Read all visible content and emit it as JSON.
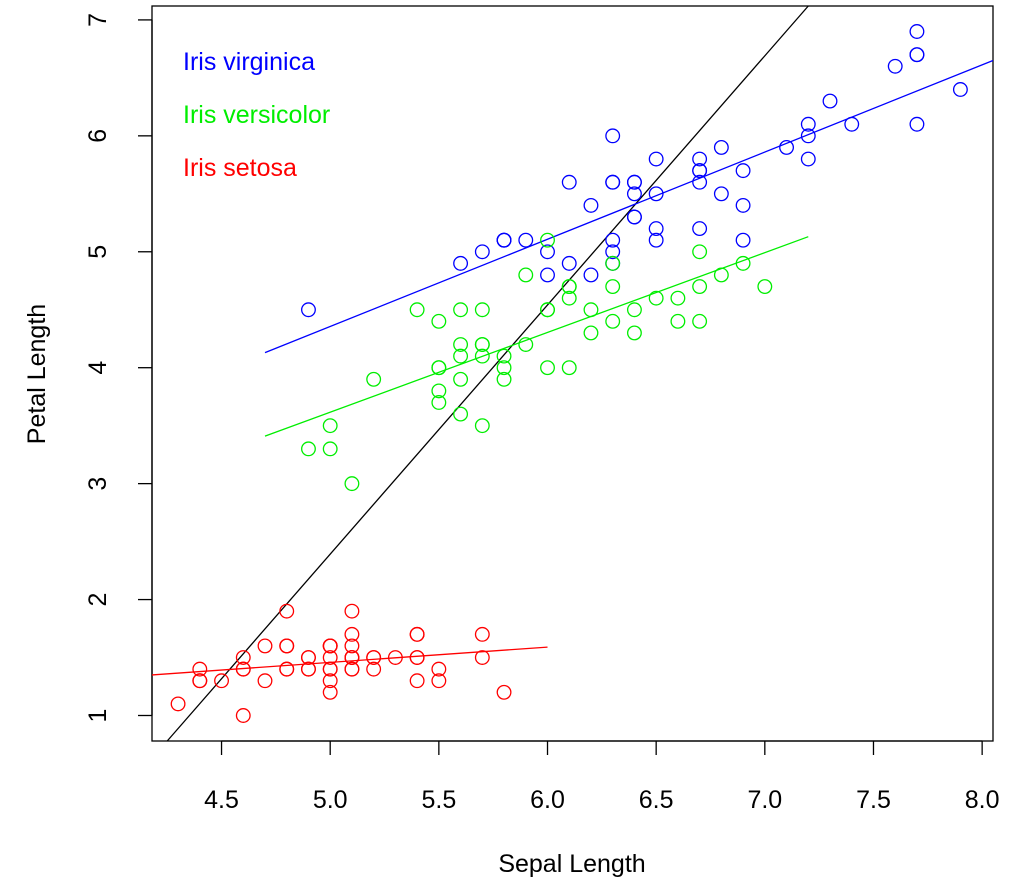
{
  "chart_data": {
    "type": "scatter",
    "title": "",
    "xlabel": "Sepal Length",
    "ylabel": "Petal Length",
    "xlim": [
      4.18,
      8.05
    ],
    "ylim": [
      0.78,
      7.12
    ],
    "x_ticks": [
      4.5,
      5.0,
      5.5,
      6.0,
      6.5,
      7.0,
      7.5,
      8.0
    ],
    "x_tick_labels": [
      "4.5",
      "5.0",
      "5.5",
      "6.0",
      "6.5",
      "7.0",
      "7.5",
      "8.0"
    ],
    "y_ticks": [
      1,
      2,
      3,
      4,
      5,
      6,
      7
    ],
    "y_tick_labels": [
      "1",
      "2",
      "3",
      "4",
      "5",
      "6",
      "7"
    ],
    "grid": false,
    "legend_placement": "top-left",
    "series": [
      {
        "name": "Iris virginica",
        "color": "#0000FF",
        "points": [
          [
            6.3,
            6.0
          ],
          [
            5.8,
            5.1
          ],
          [
            7.1,
            5.9
          ],
          [
            6.3,
            5.6
          ],
          [
            6.5,
            5.8
          ],
          [
            7.6,
            6.6
          ],
          [
            4.9,
            4.5
          ],
          [
            7.3,
            6.3
          ],
          [
            6.7,
            5.8
          ],
          [
            7.2,
            6.1
          ],
          [
            6.5,
            5.1
          ],
          [
            6.4,
            5.3
          ],
          [
            6.8,
            5.5
          ],
          [
            5.7,
            5.0
          ],
          [
            5.8,
            5.1
          ],
          [
            6.4,
            5.3
          ],
          [
            6.5,
            5.5
          ],
          [
            7.7,
            6.7
          ],
          [
            7.7,
            6.9
          ],
          [
            6.0,
            5.0
          ],
          [
            6.9,
            5.7
          ],
          [
            5.6,
            4.9
          ],
          [
            7.7,
            6.7
          ],
          [
            6.3,
            4.9
          ],
          [
            6.7,
            5.7
          ],
          [
            7.2,
            6.0
          ],
          [
            6.2,
            4.8
          ],
          [
            6.1,
            4.9
          ],
          [
            6.4,
            5.6
          ],
          [
            7.2,
            5.8
          ],
          [
            7.4,
            6.1
          ],
          [
            7.9,
            6.4
          ],
          [
            6.4,
            5.6
          ],
          [
            6.3,
            5.1
          ],
          [
            6.1,
            5.6
          ],
          [
            7.7,
            6.1
          ],
          [
            6.3,
            5.6
          ],
          [
            6.4,
            5.5
          ],
          [
            6.0,
            4.8
          ],
          [
            6.9,
            5.4
          ],
          [
            6.7,
            5.6
          ],
          [
            6.9,
            5.1
          ],
          [
            5.8,
            5.1
          ],
          [
            6.8,
            5.9
          ],
          [
            6.7,
            5.7
          ],
          [
            6.7,
            5.2
          ],
          [
            6.3,
            5.0
          ],
          [
            6.5,
            5.2
          ],
          [
            6.2,
            5.4
          ],
          [
            5.9,
            5.1
          ]
        ],
        "fit_line": {
          "x": [
            4.7,
            8.05
          ],
          "y": [
            4.13,
            6.65
          ]
        }
      },
      {
        "name": "Iris versicolor",
        "color": "#00EE00",
        "points": [
          [
            7.0,
            4.7
          ],
          [
            6.4,
            4.5
          ],
          [
            6.9,
            4.9
          ],
          [
            5.5,
            4.0
          ],
          [
            6.5,
            4.6
          ],
          [
            5.7,
            4.5
          ],
          [
            6.3,
            4.7
          ],
          [
            4.9,
            3.3
          ],
          [
            6.6,
            4.6
          ],
          [
            5.2,
            3.9
          ],
          [
            5.0,
            3.5
          ],
          [
            5.9,
            4.2
          ],
          [
            6.0,
            4.0
          ],
          [
            6.1,
            4.7
          ],
          [
            5.6,
            3.6
          ],
          [
            6.7,
            4.4
          ],
          [
            5.6,
            4.5
          ],
          [
            5.8,
            4.1
          ],
          [
            6.2,
            4.5
          ],
          [
            5.6,
            3.9
          ],
          [
            5.9,
            4.8
          ],
          [
            6.1,
            4.0
          ],
          [
            6.3,
            4.9
          ],
          [
            6.1,
            4.7
          ],
          [
            6.4,
            4.3
          ],
          [
            6.6,
            4.4
          ],
          [
            6.8,
            4.8
          ],
          [
            6.7,
            5.0
          ],
          [
            6.0,
            4.5
          ],
          [
            5.7,
            3.5
          ],
          [
            5.5,
            3.8
          ],
          [
            5.5,
            3.7
          ],
          [
            5.8,
            3.9
          ],
          [
            6.0,
            5.1
          ],
          [
            5.4,
            4.5
          ],
          [
            6.0,
            4.5
          ],
          [
            6.7,
            4.7
          ],
          [
            6.3,
            4.4
          ],
          [
            5.6,
            4.1
          ],
          [
            5.5,
            4.0
          ],
          [
            5.5,
            4.4
          ],
          [
            6.1,
            4.6
          ],
          [
            5.8,
            4.0
          ],
          [
            5.0,
            3.3
          ],
          [
            5.6,
            4.2
          ],
          [
            5.7,
            4.2
          ],
          [
            5.7,
            4.2
          ],
          [
            6.2,
            4.3
          ],
          [
            5.1,
            3.0
          ],
          [
            5.7,
            4.1
          ]
        ],
        "fit_line": {
          "x": [
            4.7,
            7.2
          ],
          "y": [
            3.41,
            5.13
          ]
        }
      },
      {
        "name": "Iris setosa",
        "color": "#FF0000",
        "points": [
          [
            5.1,
            1.4
          ],
          [
            4.9,
            1.4
          ],
          [
            4.7,
            1.3
          ],
          [
            4.6,
            1.5
          ],
          [
            5.0,
            1.4
          ],
          [
            5.4,
            1.7
          ],
          [
            4.6,
            1.4
          ],
          [
            5.0,
            1.5
          ],
          [
            4.4,
            1.4
          ],
          [
            4.9,
            1.5
          ],
          [
            5.4,
            1.5
          ],
          [
            4.8,
            1.6
          ],
          [
            4.8,
            1.4
          ],
          [
            4.3,
            1.1
          ],
          [
            5.8,
            1.2
          ],
          [
            5.7,
            1.5
          ],
          [
            5.4,
            1.3
          ],
          [
            5.1,
            1.4
          ],
          [
            5.7,
            1.7
          ],
          [
            5.1,
            1.5
          ],
          [
            5.4,
            1.7
          ],
          [
            5.1,
            1.5
          ],
          [
            4.6,
            1.0
          ],
          [
            5.1,
            1.7
          ],
          [
            4.8,
            1.9
          ],
          [
            5.0,
            1.6
          ],
          [
            5.0,
            1.6
          ],
          [
            5.2,
            1.5
          ],
          [
            5.2,
            1.4
          ],
          [
            4.7,
            1.6
          ],
          [
            4.8,
            1.6
          ],
          [
            5.4,
            1.5
          ],
          [
            5.2,
            1.5
          ],
          [
            5.5,
            1.4
          ],
          [
            4.9,
            1.5
          ],
          [
            5.0,
            1.2
          ],
          [
            5.5,
            1.3
          ],
          [
            4.9,
            1.4
          ],
          [
            4.4,
            1.3
          ],
          [
            5.1,
            1.5
          ],
          [
            5.0,
            1.3
          ],
          [
            4.5,
            1.3
          ],
          [
            4.4,
            1.3
          ],
          [
            5.0,
            1.6
          ],
          [
            5.1,
            1.9
          ],
          [
            4.8,
            1.4
          ],
          [
            5.1,
            1.6
          ],
          [
            4.6,
            1.4
          ],
          [
            5.3,
            1.5
          ],
          [
            5.0,
            1.4
          ]
        ],
        "fit_line": {
          "x": [
            4.18,
            6.0
          ],
          "y": [
            1.35,
            1.59
          ]
        }
      }
    ],
    "overall_fit_line": {
      "x": [
        4.25,
        7.2
      ],
      "y": [
        0.78,
        7.12
      ],
      "color": "#000000"
    }
  }
}
